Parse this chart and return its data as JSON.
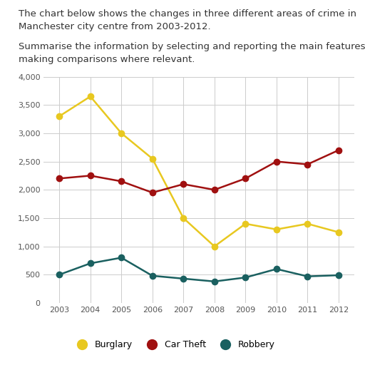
{
  "years": [
    2003,
    2004,
    2005,
    2006,
    2007,
    2008,
    2009,
    2010,
    2011,
    2012
  ],
  "burglary": [
    3300,
    3650,
    3000,
    2550,
    1500,
    1000,
    1400,
    1300,
    1400,
    1250
  ],
  "car_theft": [
    2200,
    2250,
    2150,
    1950,
    2100,
    2000,
    2200,
    2500,
    2450,
    2700
  ],
  "robbery": [
    500,
    700,
    800,
    480,
    430,
    380,
    450,
    600,
    470,
    490
  ],
  "burglary_color": "#e8c820",
  "car_theft_color": "#a01010",
  "robbery_color": "#1a6060",
  "title_line1": "The chart below shows the changes in three different areas of crime in",
  "title_line2": "Manchester city centre from 2003-2012.",
  "subtitle_line1": "Summarise the information by selecting and reporting the main features and",
  "subtitle_line2": "making comparisons where relevant.",
  "ylim": [
    0,
    4000
  ],
  "yticks": [
    0,
    500,
    1000,
    1500,
    2000,
    2500,
    3000,
    3500,
    4000
  ],
  "ytick_labels": [
    "0",
    "500",
    "1,000",
    "1,500",
    "2,000",
    "2,500",
    "3,000",
    "3,500",
    "4,000"
  ],
  "legend_labels": [
    "Burglary",
    "Car Theft",
    "Robbery"
  ],
  "background_color": "#ffffff",
  "grid_color": "#cccccc",
  "marker_size": 6,
  "line_width": 1.8,
  "text_color": "#333333",
  "font_size_text": 9.5,
  "font_size_axis": 8,
  "font_size_legend": 9
}
